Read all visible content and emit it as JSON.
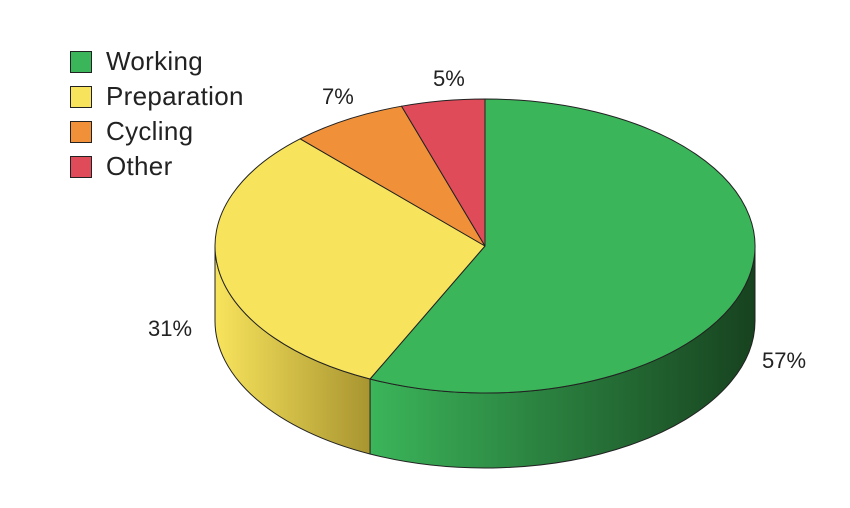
{
  "chart_data": {
    "type": "pie",
    "style": "3d",
    "title": "",
    "legend_placement": "top-left",
    "slices": [
      {
        "name": "Working",
        "value": 57,
        "label": "57%",
        "color": "#3bb55a",
        "side_dark": "#17421f"
      },
      {
        "name": "Preparation",
        "value": 31,
        "label": "31%",
        "color": "#f8e45c",
        "side_dark": "#a89530"
      },
      {
        "name": "Cycling",
        "value": 7,
        "label": "7%",
        "color": "#f0913a",
        "side_dark": "#9a5a20"
      },
      {
        "name": "Other",
        "value": 5,
        "label": "5%",
        "color": "#e04b5a",
        "side_dark": "#8a2a33"
      }
    ]
  }
}
